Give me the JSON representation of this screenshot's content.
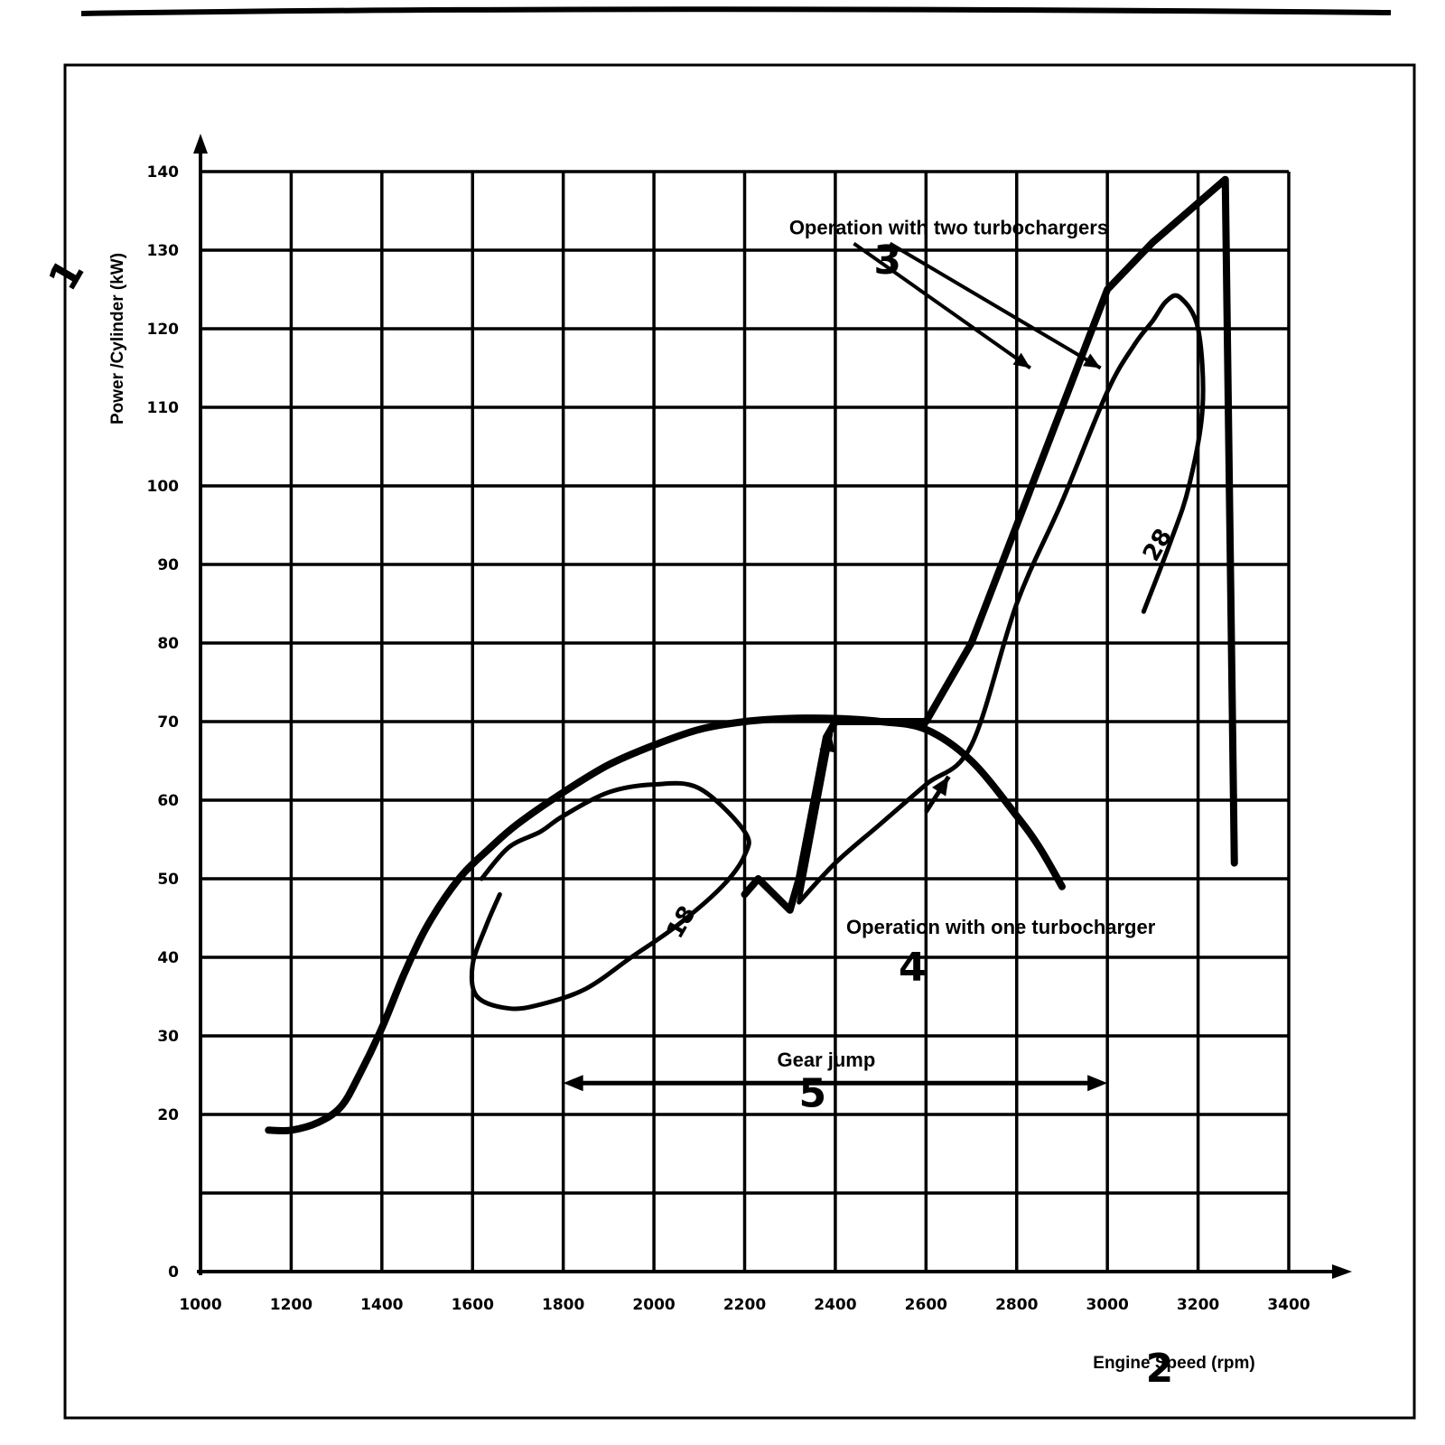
{
  "chart_data": {
    "type": "line",
    "title": "",
    "xlabel": "Engine Speed (rpm)",
    "ylabel": "Power /Cylinder (kW)",
    "xlim": [
      1000,
      3400
    ],
    "ylim": [
      0,
      140
    ],
    "x_ticks": [
      1000,
      1200,
      1400,
      1600,
      1800,
      2000,
      2200,
      2400,
      2600,
      2800,
      3000,
      3200,
      3400
    ],
    "y_ticks": [
      0,
      20,
      30,
      40,
      50,
      60,
      70,
      80,
      90,
      100,
      110,
      120,
      130,
      140
    ],
    "grid": true,
    "series": [
      {
        "name": "",
        "style": "thick",
        "points": [
          [
            1150,
            18
          ],
          [
            1200,
            18
          ],
          [
            1260,
            19
          ],
          [
            1310,
            21
          ],
          [
            1350,
            25
          ],
          [
            1400,
            31
          ],
          [
            1450,
            38
          ],
          [
            1500,
            44
          ],
          [
            1570,
            50
          ],
          [
            1640,
            54
          ],
          [
            1700,
            57
          ],
          [
            1800,
            61
          ],
          [
            1900,
            64.5
          ],
          [
            2000,
            67
          ],
          [
            2100,
            69
          ],
          [
            2200,
            70
          ],
          [
            2300,
            70.4
          ],
          [
            2400,
            70.4
          ],
          [
            2500,
            70
          ],
          [
            2600,
            69
          ],
          [
            2700,
            65
          ],
          [
            2800,
            58
          ],
          [
            2850,
            54
          ],
          [
            2900,
            49
          ]
        ]
      },
      {
        "name": "",
        "style": "thick",
        "points": [
          [
            2200,
            48
          ],
          [
            2230,
            50
          ],
          [
            2300,
            46
          ],
          [
            2320,
            50
          ],
          [
            2380,
            68
          ],
          [
            2400,
            70
          ],
          [
            2600,
            70
          ],
          [
            2700,
            80
          ],
          [
            2800,
            95
          ],
          [
            2900,
            110
          ],
          [
            3000,
            125
          ],
          [
            3100,
            131
          ],
          [
            3260,
            139
          ],
          [
            3280,
            52
          ]
        ]
      },
      {
        "name": "",
        "style": "thin",
        "points": [
          [
            1620,
            50
          ],
          [
            1680,
            54
          ],
          [
            1750,
            56
          ],
          [
            1800,
            58
          ],
          [
            1900,
            61
          ],
          [
            2000,
            62
          ],
          [
            2100,
            61.5
          ],
          [
            2200,
            56
          ],
          [
            2200,
            53
          ],
          [
            2150,
            49
          ],
          [
            2050,
            44
          ],
          [
            1950,
            40
          ],
          [
            1850,
            36
          ],
          [
            1750,
            34
          ],
          [
            1680,
            33.5
          ],
          [
            1610,
            35
          ],
          [
            1600,
            39
          ],
          [
            1630,
            44
          ],
          [
            1660,
            48
          ]
        ]
      },
      {
        "name": "",
        "style": "thin",
        "points": [
          [
            2320,
            47
          ],
          [
            2400,
            52
          ],
          [
            2500,
            57
          ],
          [
            2600,
            62
          ],
          [
            2700,
            67
          ],
          [
            2800,
            85
          ],
          [
            2900,
            98
          ],
          [
            3000,
            112
          ],
          [
            3060,
            118
          ],
          [
            3100,
            121
          ],
          [
            3130,
            123.5
          ],
          [
            3160,
            124
          ],
          [
            3200,
            120
          ],
          [
            3210,
            110
          ],
          [
            3180,
            100
          ],
          [
            3140,
            93
          ],
          [
            3080,
            84
          ]
        ]
      },
      {
        "name": "",
        "style": "arrow",
        "points": [
          [
            2600,
            58.5
          ],
          [
            2650,
            63
          ]
        ]
      },
      {
        "name": "",
        "style": "arrow",
        "points": [
          [
            2320,
            47
          ],
          [
            2390,
            68.5
          ]
        ]
      }
    ],
    "gear_jump": {
      "x_from": 1800,
      "x_to": 3000,
      "y": 24,
      "label": "Gear jump"
    },
    "annotations": [
      {
        "text": "Operation with two turbochargers",
        "x": 2650,
        "y": 132
      },
      {
        "text": "Operation with one turbocharger",
        "x": 2765,
        "y": 43
      },
      {
        "text": "3",
        "x": 2515,
        "y": 127
      },
      {
        "text": "4",
        "x": 2570,
        "y": 37
      },
      {
        "text": "5",
        "x": 2350,
        "y": 21
      },
      {
        "text": "2",
        "x": 3115,
        "y": -14
      },
      {
        "text": "1",
        "x": 730,
        "y": 126
      },
      {
        "text": "18",
        "x": 2075,
        "y": 44
      },
      {
        "text": "28",
        "x": 3125,
        "y": 92
      }
    ]
  }
}
